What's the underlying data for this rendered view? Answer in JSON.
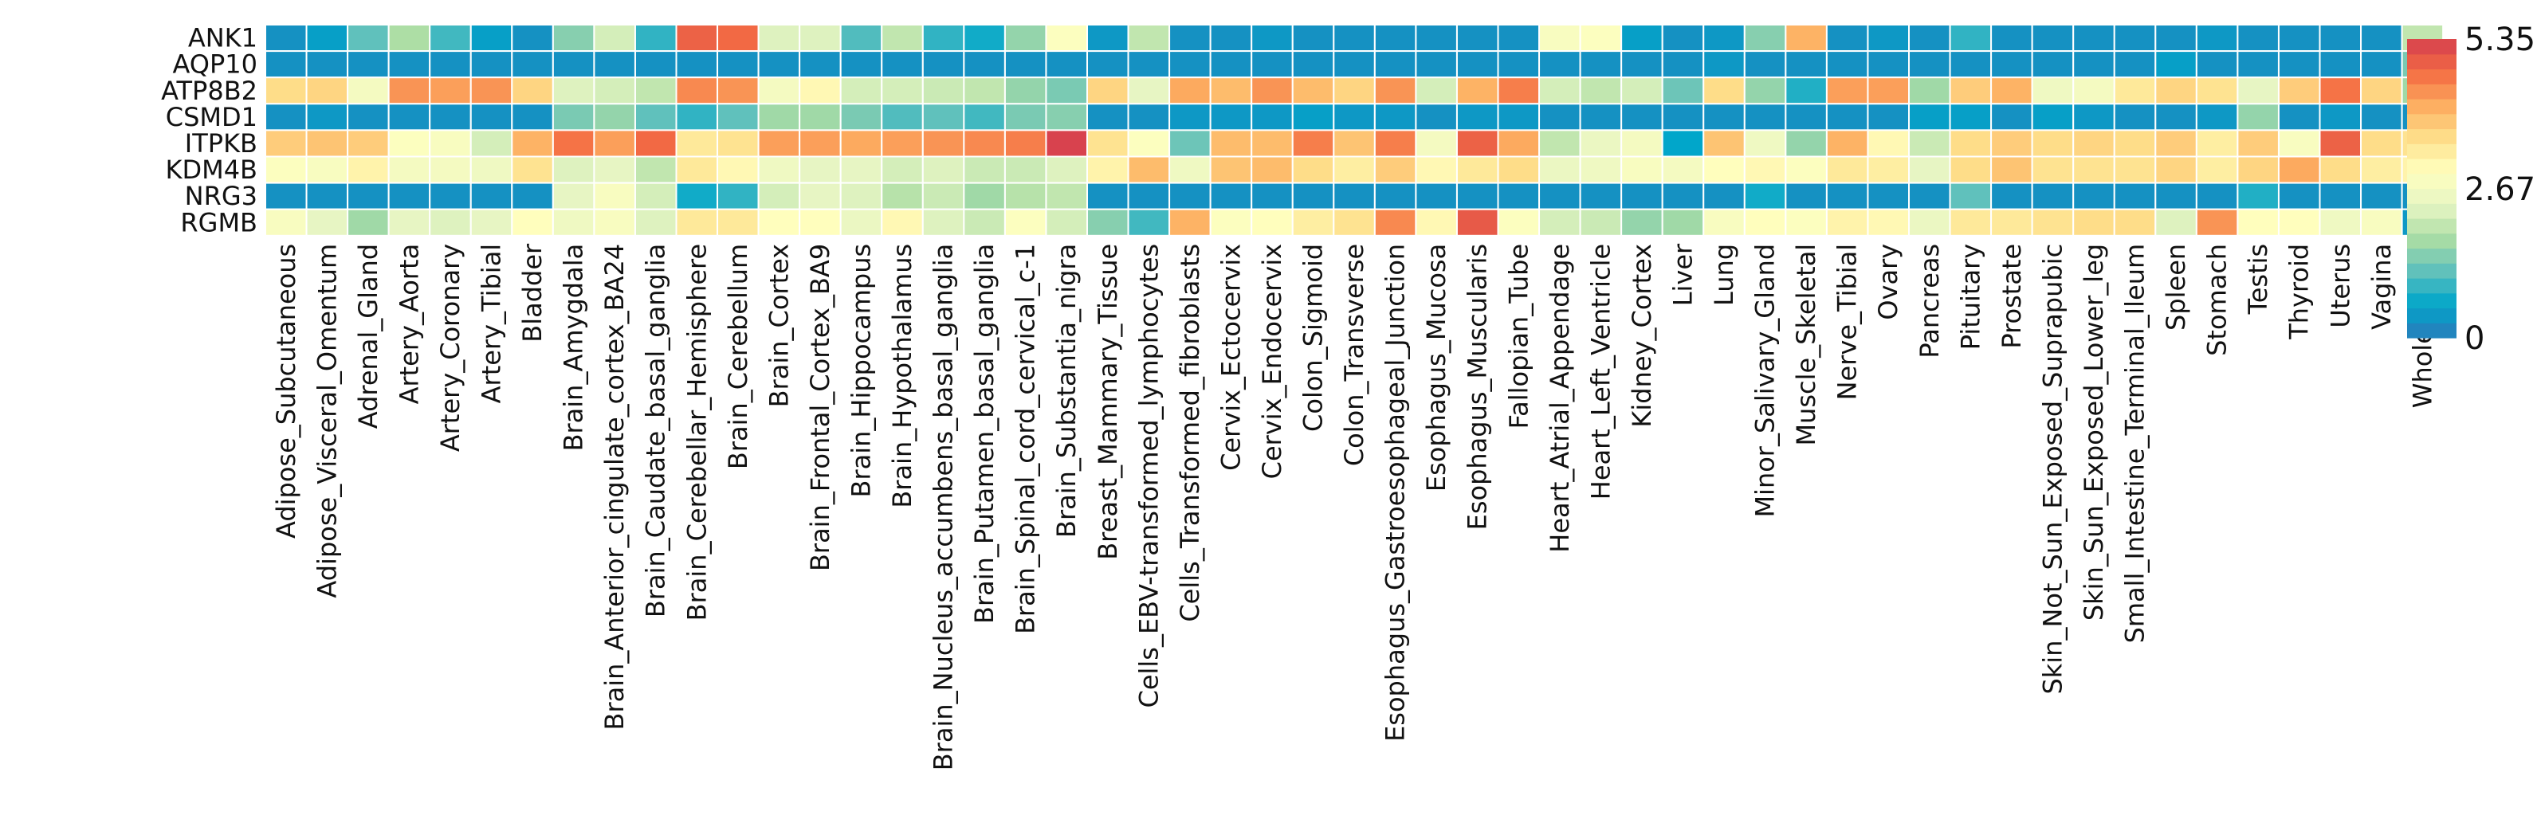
{
  "chart_data": {
    "type": "heatmap",
    "rows": [
      "ANK1",
      "AQP10",
      "ATP8B2",
      "CSMD1",
      "ITPKB",
      "KDM4B",
      "NRG3",
      "RGMB"
    ],
    "columns": [
      "Adipose_Subcutaneous",
      "Adipose_Visceral_Omentum",
      "Adrenal_Gland",
      "Artery_Aorta",
      "Artery_Coronary",
      "Artery_Tibial",
      "Bladder",
      "Brain_Amygdala",
      "Brain_Anterior_cingulate_cortex_BA24",
      "Brain_Caudate_basal_ganglia",
      "Brain_Cerebellar_Hemisphere",
      "Brain_Cerebellum",
      "Brain_Cortex",
      "Brain_Frontal_Cortex_BA9",
      "Brain_Hippocampus",
      "Brain_Hypothalamus",
      "Brain_Nucleus_accumbens_basal_ganglia",
      "Brain_Putamen_basal_ganglia",
      "Brain_Spinal_cord_cervical_c-1",
      "Brain_Substantia_nigra",
      "Breast_Mammary_Tissue",
      "Cells_EBV-transformed_lymphocytes",
      "Cells_Transformed_fibroblasts",
      "Cervix_Ectocervix",
      "Cervix_Endocervix",
      "Colon_Sigmoid",
      "Colon_Transverse",
      "Esophagus_Gastroesophageal_Junction",
      "Esophagus_Mucosa",
      "Esophagus_Muscularis",
      "Fallopian_Tube",
      "Heart_Atrial_Appendage",
      "Heart_Left_Ventricle",
      "Kidney_Cortex",
      "Liver",
      "Lung",
      "Minor_Salivary_Gland",
      "Muscle_Skeletal",
      "Nerve_Tibial",
      "Ovary",
      "Pancreas",
      "Pituitary",
      "Prostate",
      "Skin_Not_Sun_Exposed_Suprapubic",
      "Skin_Sun_Exposed_Lower_leg",
      "Small_Intestine_Terminal_Ileum",
      "Spleen",
      "Stomach",
      "Testis",
      "Thyroid",
      "Uterus",
      "Vagina",
      "Whole_Blood"
    ],
    "values": [
      [
        0.3,
        0.5,
        1.2,
        1.8,
        1.0,
        0.5,
        0.3,
        1.5,
        2.2,
        0.9,
        4.9,
        4.8,
        2.3,
        2.3,
        1.1,
        2.0,
        0.9,
        0.7,
        1.6,
        2.9,
        0.4,
        2.0,
        0.3,
        0.3,
        0.4,
        0.3,
        0.3,
        0.3,
        0.3,
        0.3,
        0.3,
        2.8,
        2.9,
        0.5,
        0.3,
        0.4,
        1.5,
        4.1,
        0.3,
        0.4,
        0.3,
        0.9,
        0.3,
        0.3,
        0.3,
        0.3,
        0.3,
        0.4,
        0.3,
        0.3,
        0.3,
        0.3,
        2.0
      ],
      [
        0.3,
        0.3,
        0.3,
        0.3,
        0.3,
        0.3,
        0.3,
        0.3,
        0.3,
        0.3,
        0.3,
        0.3,
        0.3,
        0.3,
        0.3,
        0.3,
        0.3,
        0.3,
        0.3,
        0.3,
        0.3,
        0.3,
        0.3,
        0.3,
        0.3,
        0.3,
        0.3,
        0.3,
        0.3,
        0.3,
        0.3,
        0.3,
        0.3,
        0.3,
        0.3,
        0.4,
        0.3,
        0.3,
        0.3,
        0.3,
        0.3,
        0.3,
        0.3,
        0.3,
        0.3,
        0.3,
        0.5,
        0.3,
        0.3,
        0.3,
        0.3,
        0.3,
        1.4
      ],
      [
        3.6,
        3.7,
        2.7,
        4.4,
        4.3,
        4.4,
        3.7,
        2.3,
        2.2,
        2.0,
        4.5,
        4.4,
        2.7,
        3.1,
        2.2,
        2.2,
        2.1,
        2.0,
        1.6,
        1.4,
        3.7,
        2.4,
        4.2,
        4.0,
        4.4,
        4.0,
        3.7,
        4.4,
        2.2,
        4.1,
        4.6,
        2.2,
        2.0,
        2.2,
        1.3,
        3.6,
        1.6,
        0.8,
        4.3,
        4.3,
        1.7,
        3.8,
        4.1,
        2.6,
        2.7,
        3.4,
        3.7,
        3.5,
        2.4,
        3.8,
        4.7,
        3.7,
        1.7
      ],
      [
        0.3,
        0.4,
        0.3,
        0.3,
        0.3,
        0.3,
        0.3,
        1.4,
        1.6,
        1.2,
        0.9,
        1.2,
        1.7,
        1.7,
        1.4,
        1.1,
        1.2,
        1.0,
        1.4,
        1.5,
        0.3,
        0.3,
        0.4,
        0.4,
        0.4,
        0.5,
        0.4,
        0.4,
        0.3,
        0.4,
        0.4,
        0.3,
        0.3,
        0.3,
        0.3,
        0.3,
        0.3,
        0.3,
        0.3,
        0.3,
        0.5,
        0.5,
        0.3,
        0.5,
        0.4,
        0.3,
        0.3,
        0.4,
        1.6,
        0.3,
        0.4,
        0.3,
        0.3
      ],
      [
        3.8,
        3.9,
        3.8,
        2.9,
        2.8,
        2.2,
        4.1,
        4.7,
        4.3,
        4.8,
        3.4,
        3.5,
        4.3,
        4.3,
        4.2,
        4.3,
        4.4,
        4.5,
        4.6,
        5.3,
        3.5,
        2.9,
        1.3,
        4.0,
        4.0,
        4.6,
        3.9,
        4.6,
        2.7,
        4.9,
        4.2,
        2.0,
        2.5,
        2.7,
        0.6,
        3.9,
        2.6,
        1.6,
        4.1,
        3.1,
        2.1,
        3.6,
        3.8,
        3.6,
        3.7,
        3.6,
        3.8,
        3.3,
        3.8,
        2.8,
        4.9,
        3.6,
        3.5
      ],
      [
        2.9,
        2.8,
        3.2,
        2.7,
        2.7,
        2.6,
        3.5,
        2.3,
        2.4,
        2.0,
        3.4,
        3.1,
        2.6,
        2.4,
        2.4,
        2.2,
        2.3,
        2.1,
        2.1,
        2.3,
        3.2,
        4.0,
        2.6,
        3.9,
        4.0,
        3.6,
        3.3,
        3.8,
        3.1,
        3.4,
        3.6,
        2.5,
        2.6,
        2.8,
        2.7,
        3.0,
        3.1,
        2.9,
        3.4,
        3.3,
        2.4,
        3.6,
        3.9,
        3.5,
        3.5,
        3.5,
        3.7,
        3.3,
        3.7,
        4.2,
        3.6,
        3.3,
        3.2
      ],
      [
        0.3,
        0.3,
        0.3,
        0.3,
        0.3,
        0.3,
        0.3,
        2.4,
        2.8,
        2.2,
        0.7,
        0.9,
        2.2,
        2.4,
        2.3,
        1.9,
        2.1,
        1.7,
        1.9,
        2.0,
        0.3,
        0.3,
        0.3,
        0.3,
        0.3,
        0.3,
        0.3,
        0.3,
        0.3,
        0.3,
        0.3,
        0.3,
        0.3,
        0.3,
        0.3,
        0.3,
        0.7,
        0.3,
        0.3,
        0.3,
        0.3,
        1.2,
        0.3,
        0.3,
        0.3,
        0.3,
        0.3,
        0.3,
        0.8,
        0.3,
        0.3,
        0.3,
        0.3
      ],
      [
        2.8,
        2.4,
        1.7,
        2.4,
        2.3,
        2.4,
        3.0,
        2.6,
        2.8,
        2.3,
        3.4,
        3.4,
        3.0,
        3.0,
        2.5,
        3.1,
        2.3,
        2.1,
        2.9,
        2.2,
        1.5,
        1.0,
        4.1,
        2.9,
        3.0,
        3.3,
        3.5,
        4.5,
        3.1,
        5.0,
        2.9,
        2.2,
        2.1,
        1.6,
        1.7,
        2.8,
        3.0,
        2.9,
        3.2,
        3.1,
        2.5,
        3.4,
        3.4,
        3.5,
        3.6,
        3.6,
        2.3,
        4.4,
        3.0,
        3.0,
        2.6,
        2.8,
        0.4
      ]
    ],
    "colorbar": {
      "min": 0,
      "max": 5.35,
      "tick_labels": [
        "5.35",
        "2.67",
        "0"
      ],
      "ticks": [
        5.35,
        2.67,
        0
      ]
    },
    "colormap": [
      "#2b7bba",
      "#00a6ca",
      "#5fc0bc",
      "#abdda4",
      "#e6f5c3",
      "#ffffbf",
      "#fee08b",
      "#fdae61",
      "#f46d43",
      "#d53e4f"
    ],
    "gridlines": true,
    "legend_placement": "right"
  }
}
